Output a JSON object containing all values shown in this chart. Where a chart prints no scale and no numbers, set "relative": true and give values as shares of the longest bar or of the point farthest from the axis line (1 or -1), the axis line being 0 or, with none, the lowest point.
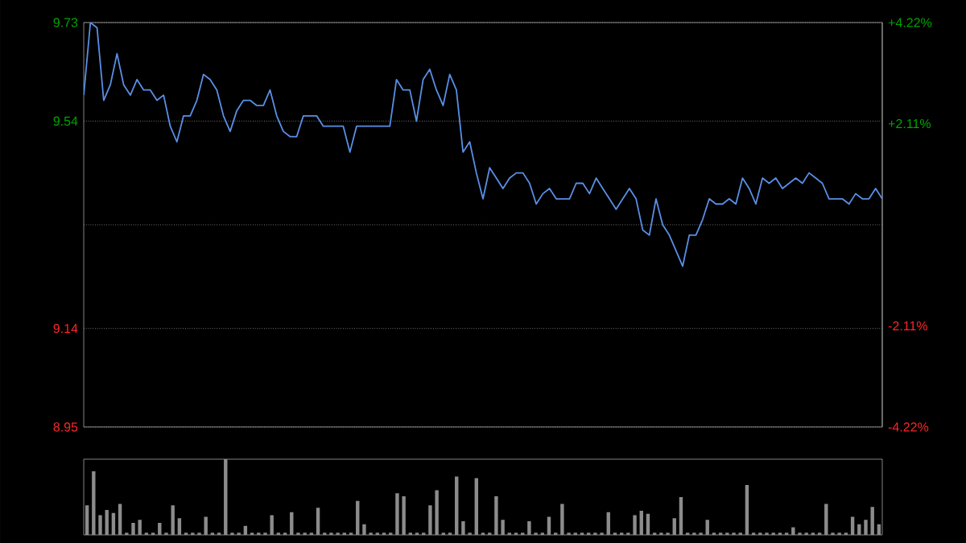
{
  "chart_data": [
    {
      "type": "line",
      "color": "#5a8fe6",
      "grid": true,
      "tick_labels": "y",
      "categories": [
        null,
        null,
        null,
        null,
        null,
        null,
        null,
        null,
        null,
        null,
        null,
        null,
        null,
        null,
        null,
        null,
        null,
        null,
        null,
        null,
        null,
        null,
        null,
        null,
        null,
        null,
        null,
        null,
        null,
        null,
        null,
        null,
        null,
        null,
        null,
        null,
        null,
        null,
        null,
        null,
        null,
        null,
        null,
        null,
        null,
        null,
        null,
        null,
        null,
        null,
        null,
        null,
        null,
        null,
        null,
        null,
        null,
        null,
        null,
        null,
        null,
        null,
        null,
        null,
        null,
        null,
        null,
        null,
        null,
        null,
        null,
        null,
        null,
        null,
        null,
        null,
        null,
        null,
        null,
        null,
        null,
        null,
        null,
        null,
        null,
        null,
        null,
        null,
        null,
        null,
        null,
        null,
        null,
        null,
        null,
        null,
        null,
        null,
        null,
        null,
        null,
        null,
        null,
        null,
        null,
        null,
        null,
        null,
        null,
        null,
        null,
        null,
        null,
        null,
        null,
        null,
        null,
        null,
        null,
        null,
        null
      ],
      "values": [
        9.59,
        9.73,
        9.72,
        9.58,
        9.61,
        9.67,
        9.61,
        9.59,
        9.62,
        9.6,
        9.6,
        9.58,
        9.59,
        9.53,
        9.5,
        9.55,
        9.55,
        9.58,
        9.63,
        9.62,
        9.6,
        9.55,
        9.52,
        9.56,
        9.58,
        9.58,
        9.57,
        9.57,
        9.6,
        9.55,
        9.52,
        9.51,
        9.51,
        9.55,
        9.55,
        9.55,
        9.53,
        9.53,
        9.53,
        9.53,
        9.48,
        9.53,
        9.53,
        9.53,
        9.53,
        9.53,
        9.53,
        9.62,
        9.6,
        9.6,
        9.54,
        9.62,
        9.64,
        9.6,
        9.57,
        9.63,
        9.6,
        9.48,
        9.5,
        9.44,
        9.39,
        9.45,
        9.43,
        9.41,
        9.43,
        9.44,
        9.44,
        9.42,
        9.38,
        9.4,
        9.41,
        9.39,
        9.39,
        9.39,
        9.42,
        9.42,
        9.4,
        9.43,
        9.41,
        9.39,
        9.37,
        9.39,
        9.41,
        9.39,
        9.33,
        9.32,
        9.39,
        9.34,
        9.32,
        9.29,
        9.26,
        9.32,
        9.32,
        9.35,
        9.39,
        9.38,
        9.38,
        9.39,
        9.38,
        9.43,
        9.41,
        9.38,
        9.43,
        9.42,
        9.43,
        9.41,
        9.42,
        9.43,
        9.42,
        9.44,
        9.43,
        9.42,
        9.39,
        9.39,
        9.39,
        9.38,
        9.4,
        9.39,
        9.39,
        9.41,
        9.39
      ],
      "ylim": [
        8.95,
        9.73
      ],
      "yticks": [
        8.95,
        9.14,
        {
          "value": 9.34,
          "label": null
        },
        9.54,
        9.73
      ],
      "y2lim": [
        -4.22,
        4.22
      ],
      "y2ticks": [
        {
          "value": -4.22,
          "label": "-4.22%"
        },
        {
          "value": -2.11,
          "label": "-2.11%"
        },
        {
          "value": 2.11,
          "label": "+2.11%"
        },
        {
          "value": 4.22,
          "label": "+4.22%"
        }
      ]
    },
    {
      "type": "bar",
      "relative": true,
      "color": "#8c8c8c",
      "tick_labels": false,
      "categories": [
        null,
        null,
        null,
        null,
        null,
        null,
        null,
        null,
        null,
        null,
        null,
        null,
        null,
        null,
        null,
        null,
        null,
        null,
        null,
        null,
        null,
        null,
        null,
        null,
        null,
        null,
        null,
        null,
        null,
        null,
        null,
        null,
        null,
        null,
        null,
        null,
        null,
        null,
        null,
        null,
        null,
        null,
        null,
        null,
        null,
        null,
        null,
        null,
        null,
        null,
        null,
        null,
        null,
        null,
        null,
        null,
        null,
        null,
        null,
        null,
        null,
        null,
        null,
        null,
        null,
        null,
        null,
        null,
        null,
        null,
        null,
        null,
        null,
        null,
        null,
        null,
        null,
        null,
        null,
        null,
        null,
        null,
        null,
        null,
        null,
        null,
        null,
        null,
        null,
        null,
        null,
        null,
        null,
        null,
        null,
        null,
        null,
        null,
        null,
        null,
        null,
        null,
        null,
        null,
        null,
        null,
        null,
        null,
        null,
        null,
        null,
        null,
        null,
        null,
        null,
        null,
        null,
        null,
        null,
        null,
        null
      ],
      "values": [
        0.39,
        0.84,
        0.26,
        0.33,
        0.29,
        0.41,
        0.03,
        0.16,
        0.2,
        0.03,
        0.03,
        0.16,
        0.03,
        0.39,
        0.22,
        0.03,
        0.03,
        0.03,
        0.24,
        0.03,
        0.03,
        1.0,
        0.03,
        0.03,
        0.12,
        0.03,
        0.03,
        0.03,
        0.26,
        0.03,
        0.03,
        0.3,
        0.03,
        0.03,
        0.03,
        0.36,
        0.03,
        0.03,
        0.03,
        0.03,
        0.03,
        0.45,
        0.14,
        0.03,
        0.03,
        0.03,
        0.03,
        0.55,
        0.51,
        0.03,
        0.03,
        0.03,
        0.39,
        0.59,
        0.03,
        0.03,
        0.77,
        0.18,
        0.03,
        0.75,
        0.03,
        0.03,
        0.51,
        0.2,
        0.03,
        0.03,
        0.03,
        0.18,
        0.03,
        0.03,
        0.24,
        0.03,
        0.41,
        0.03,
        0.03,
        0.03,
        0.03,
        0.03,
        0.03,
        0.3,
        0.03,
        0.03,
        0.03,
        0.26,
        0.32,
        0.28,
        0.03,
        0.03,
        0.03,
        0.22,
        0.5,
        0.03,
        0.03,
        0.03,
        0.2,
        0.03,
        0.03,
        0.03,
        0.03,
        0.03,
        0.66,
        0.03,
        0.03,
        0.03,
        0.03,
        0.03,
        0.03,
        0.1,
        0.03,
        0.03,
        0.03,
        0.03,
        0.41,
        0.03,
        0.03,
        0.03,
        0.24,
        0.14,
        0.2,
        0.37,
        0.14
      ]
    }
  ]
}
